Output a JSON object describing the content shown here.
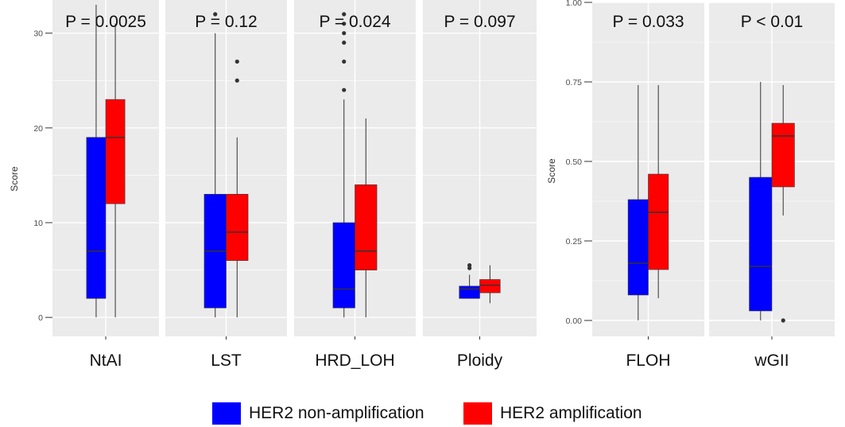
{
  "colors": {
    "non_amplification": "#0000ff",
    "amplification": "#ff0000",
    "panel_background": "#ebebeb",
    "gridline": "#ffffff",
    "whisker": "#333333",
    "median": "#333333"
  },
  "legend": {
    "position": "bottom",
    "items": [
      {
        "label": "HER2 non-amplification",
        "color": "#0000ff"
      },
      {
        "label": "HER2 amplification",
        "color": "#ff0000"
      }
    ]
  },
  "chart_data": [
    {
      "type": "boxplot",
      "ylabel": "Score",
      "ylim": [
        -2,
        33.5
      ],
      "yticks": [
        0,
        10,
        20,
        30
      ],
      "ytick_labels": [
        "0",
        "10",
        "20",
        "30"
      ],
      "grid": true,
      "facets": [
        {
          "label": "NtAI",
          "pvalue": "P = 0.0025",
          "boxes": [
            {
              "group": "HER2 non-amplification",
              "min": 0,
              "q1": 2,
              "median": 7,
              "q3": 19,
              "max": 33,
              "outliers": []
            },
            {
              "group": "HER2 amplification",
              "min": 0,
              "q1": 12,
              "median": 19,
              "q3": 23,
              "max": 31,
              "outliers": []
            }
          ]
        },
        {
          "label": "LST",
          "pvalue": "P = 0.12",
          "boxes": [
            {
              "group": "HER2 non-amplification",
              "min": 0,
              "q1": 1,
              "median": 7,
              "q3": 13,
              "max": 30,
              "outliers": [
                32
              ]
            },
            {
              "group": "HER2 amplification",
              "min": 0,
              "q1": 6,
              "median": 9,
              "q3": 13,
              "max": 19,
              "outliers": [
                25,
                27
              ]
            }
          ]
        },
        {
          "label": "HRD_LOH",
          "pvalue": "P = 0.024",
          "boxes": [
            {
              "group": "HER2 non-amplification",
              "min": 0,
              "q1": 1,
              "median": 3,
              "q3": 10,
              "max": 23,
              "outliers": [
                24,
                27,
                29,
                30,
                31,
                32
              ]
            },
            {
              "group": "HER2 amplification",
              "min": 0,
              "q1": 5,
              "median": 7,
              "q3": 14,
              "max": 21,
              "outliers": []
            }
          ]
        },
        {
          "label": "Ploidy",
          "pvalue": "P = 0.097",
          "boxes": [
            {
              "group": "HER2 non-amplification",
              "min": 2,
              "q1": 2,
              "median": 3,
              "q3": 3.3,
              "max": 4.5,
              "outliers": [
                5.2,
                5.5
              ]
            },
            {
              "group": "HER2 amplification",
              "min": 1.5,
              "q1": 2.6,
              "median": 3.4,
              "q3": 4,
              "max": 5.5,
              "outliers": []
            }
          ]
        }
      ]
    },
    {
      "type": "boxplot",
      "ylabel": "Score",
      "ylim": [
        -0.05,
        1.0
      ],
      "yticks": [
        0.0,
        0.25,
        0.5,
        0.75,
        1.0
      ],
      "ytick_labels": [
        "0.00",
        "0.25",
        "0.50",
        "0.75",
        "1.00"
      ],
      "grid": true,
      "facets": [
        {
          "label": "FLOH",
          "pvalue": "P = 0.033",
          "boxes": [
            {
              "group": "HER2 non-amplification",
              "min": 0,
              "q1": 0.08,
              "median": 0.18,
              "q3": 0.38,
              "max": 0.74,
              "outliers": []
            },
            {
              "group": "HER2 amplification",
              "min": 0.07,
              "q1": 0.16,
              "median": 0.34,
              "q3": 0.46,
              "max": 0.74,
              "outliers": []
            }
          ]
        },
        {
          "label": "wGII",
          "pvalue": "P < 0.01",
          "boxes": [
            {
              "group": "HER2 non-amplification",
              "min": 0,
              "q1": 0.03,
              "median": 0.17,
              "q3": 0.45,
              "max": 0.75,
              "outliers": []
            },
            {
              "group": "HER2 amplification",
              "min": 0.33,
              "q1": 0.42,
              "median": 0.58,
              "q3": 0.62,
              "max": 0.74,
              "outliers": [
                0
              ]
            }
          ]
        }
      ]
    }
  ]
}
